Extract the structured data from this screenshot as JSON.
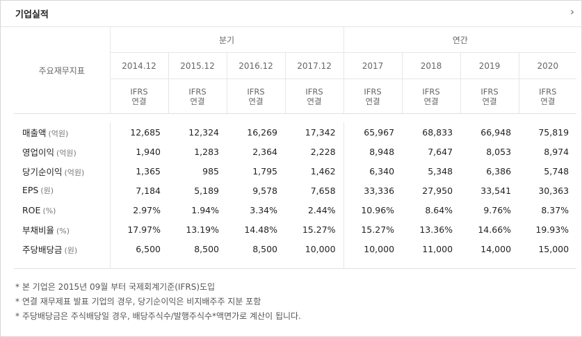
{
  "header": {
    "title": "기업실적",
    "more_icon": "chevron-right-icon",
    "more_glyph": "›"
  },
  "table": {
    "metric_header": "주요재무지표",
    "groups": {
      "quarterly": "분기",
      "annual": "연간"
    },
    "periods": [
      "2014.12",
      "2015.12",
      "2016.12",
      "2017.12",
      "2017",
      "2018",
      "2019",
      "2020"
    ],
    "standard": {
      "line1": "IFRS",
      "line2": "연결"
    },
    "rows": [
      {
        "name": "매출액",
        "unit": "(억원)",
        "values": [
          "12,685",
          "12,324",
          "16,269",
          "17,342",
          "65,967",
          "68,833",
          "66,948",
          "75,819"
        ]
      },
      {
        "name": "영업이익",
        "unit": "(억원)",
        "values": [
          "1,940",
          "1,283",
          "2,364",
          "2,228",
          "8,948",
          "7,647",
          "8,053",
          "8,974"
        ]
      },
      {
        "name": "당기순이익",
        "unit": "(억원)",
        "values": [
          "1,365",
          "985",
          "1,795",
          "1,462",
          "6,340",
          "5,348",
          "6,386",
          "5,748"
        ]
      },
      {
        "name": "EPS",
        "unit": "(원)",
        "values": [
          "7,184",
          "5,189",
          "9,578",
          "7,658",
          "33,336",
          "27,950",
          "33,541",
          "30,363"
        ]
      },
      {
        "name": "ROE",
        "unit": "(%)",
        "values": [
          "2.97%",
          "1.94%",
          "3.34%",
          "2.44%",
          "10.96%",
          "8.64%",
          "9.76%",
          "8.37%"
        ]
      },
      {
        "name": "부채비율",
        "unit": "(%)",
        "values": [
          "17.97%",
          "13.19%",
          "14.48%",
          "15.27%",
          "15.27%",
          "13.36%",
          "14.66%",
          "19.93%"
        ]
      },
      {
        "name": "주당배당금",
        "unit": "(원)",
        "values": [
          "6,500",
          "8,500",
          "8,500",
          "10,000",
          "10,000",
          "11,000",
          "14,000",
          "15,000"
        ]
      }
    ]
  },
  "notes": [
    "* 본 기업은 2015년 09월 부터 국제회계기준(IFRS)도입",
    "* 연결 재무제표 발표 기업의 경우, 당기순이익은 비지배주주 지분 포함",
    "* 주당배당금은 주식배당일 경우, 배당주식수/발행주식수*액면가로 계산이 됩니다."
  ]
}
